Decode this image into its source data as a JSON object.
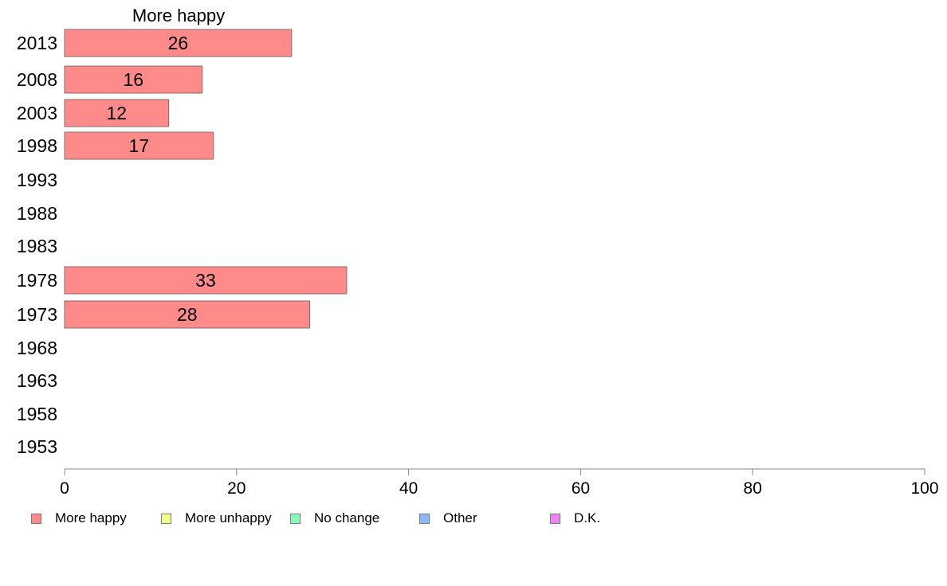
{
  "chart_data": {
    "type": "bar",
    "orientation": "horizontal",
    "title": "More happy",
    "categories": [
      "2013",
      "2008",
      "2003",
      "1998",
      "1993",
      "1988",
      "1983",
      "1978",
      "1973",
      "1968",
      "1963",
      "1958",
      "1953"
    ],
    "series": [
      {
        "name": "More happy",
        "values": [
          26.4,
          16.0,
          12.1,
          17.3,
          null,
          null,
          null,
          32.8,
          28.5,
          null,
          null,
          null,
          null
        ],
        "labels": [
          "26",
          "16",
          "12",
          "17",
          "",
          "",
          "",
          "33",
          "28",
          "",
          "",
          "",
          ""
        ]
      }
    ],
    "xlim": [
      0,
      100
    ],
    "xticks": [
      "0",
      "20",
      "40",
      "60",
      "80",
      "100"
    ],
    "grid": false,
    "legend": {
      "placement": "bottom",
      "entries": [
        {
          "label": "More happy",
          "color": "#ff8a8a"
        },
        {
          "label": "More unhappy",
          "color": "#f2ff80"
        },
        {
          "label": "No change",
          "color": "#80ffb4"
        },
        {
          "label": "Other",
          "color": "#88b8ff"
        },
        {
          "label": "D.K.",
          "color": "#f080ff"
        }
      ]
    },
    "colors": {
      "bar": "#ff8a8a",
      "bar_border": "#8a6a6a",
      "axis": "#888888"
    }
  }
}
